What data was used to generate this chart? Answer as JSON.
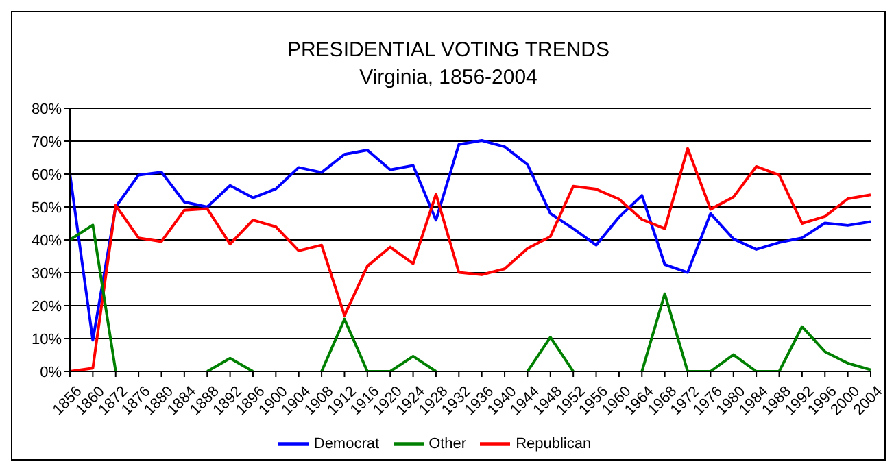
{
  "chart_data": {
    "type": "line",
    "title": "PRESIDENTIAL VOTING TRENDS",
    "subtitle": "Virginia, 1856-2004",
    "categories": [
      "1856",
      "1860",
      "1872",
      "1876",
      "1880",
      "1884",
      "1888",
      "1892",
      "1896",
      "1900",
      "1904",
      "1908",
      "1912",
      "1916",
      "1920",
      "1924",
      "1928",
      "1932",
      "1936",
      "1940",
      "1944",
      "1948",
      "1952",
      "1956",
      "1960",
      "1964",
      "1968",
      "1972",
      "1976",
      "1980",
      "1984",
      "1988",
      "1992",
      "1996",
      "2000",
      "2004"
    ],
    "series": [
      {
        "name": "Democrat",
        "color": "#0000ff",
        "values": [
          60,
          9.5,
          50,
          59.7,
          60.6,
          51.5,
          50,
          56.5,
          52.8,
          55.5,
          62,
          60.5,
          66,
          67.3,
          61.3,
          62.6,
          46,
          69,
          70.2,
          68.3,
          62.9,
          48,
          43.4,
          38.4,
          46.9,
          53.5,
          32.5,
          30.1,
          48,
          40.3,
          37.1,
          39.2,
          40.6,
          45.1,
          44.4,
          45.5
        ]
      },
      {
        "name": "Republican",
        "color": "#ff0000",
        "values": [
          0,
          1,
          50.5,
          40.6,
          39.5,
          49,
          49.5,
          38.7,
          46,
          44,
          36.7,
          38.4,
          17,
          32,
          37.8,
          32.8,
          53.9,
          30.1,
          29.4,
          31.2,
          37.4,
          41,
          56.3,
          55.4,
          52.4,
          46.2,
          43.4,
          67.8,
          49.3,
          53,
          62.3,
          59.7,
          45,
          47.1,
          52.5,
          53.7
        ]
      },
      {
        "name": "Other",
        "color": "#008000",
        "values": [
          40,
          44.5,
          0,
          null,
          null,
          null,
          0,
          4,
          0,
          null,
          null,
          0,
          15.9,
          0,
          0,
          4.6,
          0,
          null,
          null,
          null,
          0,
          10.4,
          0,
          null,
          null,
          0,
          23.6,
          0,
          0,
          5.1,
          0,
          0,
          13.6,
          6,
          2.5,
          0.5
        ]
      }
    ],
    "ylim": [
      0,
      80
    ],
    "yticks": [
      {
        "value": 0,
        "label": "0%"
      },
      {
        "value": 10,
        "label": "10%"
      },
      {
        "value": 20,
        "label": "20%"
      },
      {
        "value": 30,
        "label": "30%"
      },
      {
        "value": 40,
        "label": "40%"
      },
      {
        "value": 50,
        "label": "50%"
      },
      {
        "value": 60,
        "label": "60%"
      },
      {
        "value": 70,
        "label": "70%"
      },
      {
        "value": 80,
        "label": "80%"
      }
    ],
    "grid": "y",
    "legend": "bottom",
    "marker": "none",
    "line_style": "solid"
  }
}
